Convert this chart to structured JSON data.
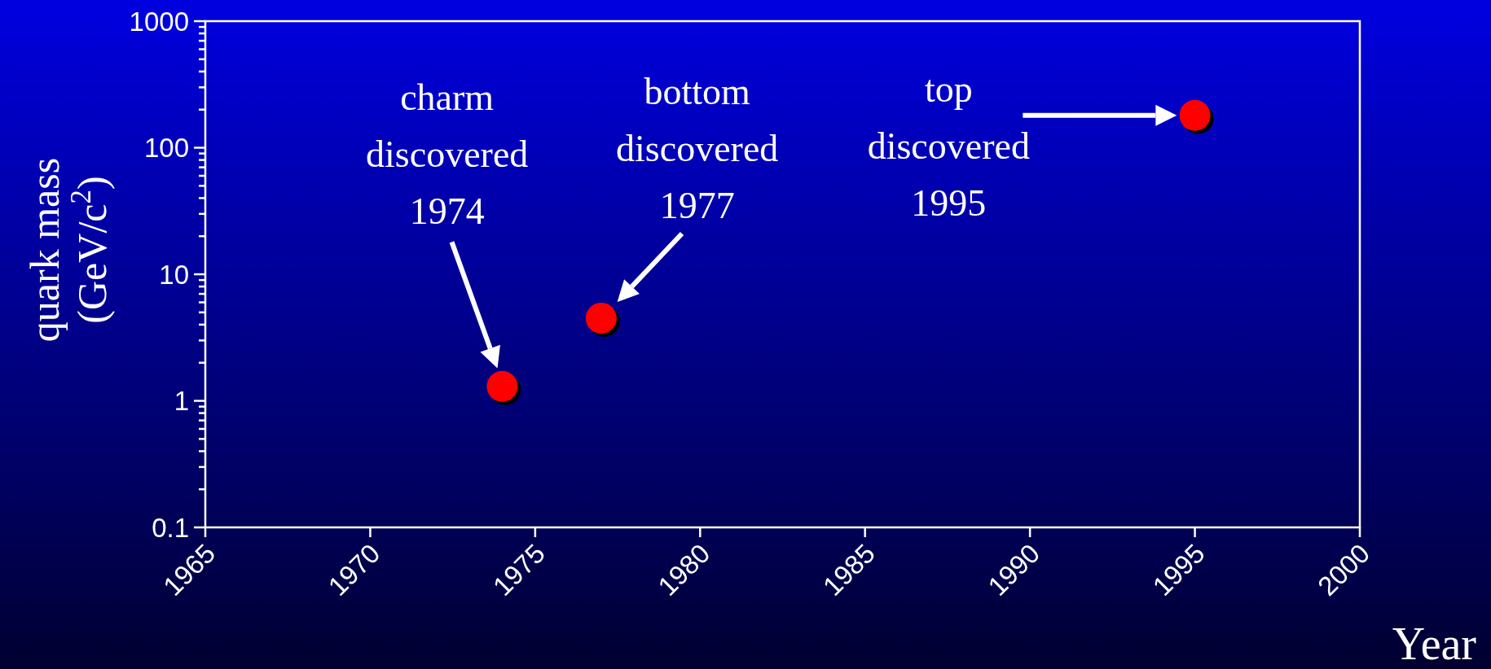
{
  "chart_data": {
    "type": "scatter",
    "xlabel": "Year",
    "ylabel": "quark mass\n(GeV/c$^{2}$)",
    "log": "y",
    "x": [
      1974,
      1977,
      1995
    ],
    "series": [
      {
        "color": "#ff0000",
        "values": [
          1.3,
          4.5,
          180
        ]
      }
    ],
    "marker": "circle",
    "grid": false,
    "xlim": [
      1965,
      2000
    ],
    "xticks": [
      1965,
      1970,
      1975,
      1980,
      1985,
      1990,
      1995,
      2000
    ],
    "ylim": [
      0.1,
      1000
    ],
    "yticks": [
      0.1,
      {
        "value": 0.2,
        "label": null
      },
      {
        "value": 0.3,
        "label": null
      },
      {
        "value": 0.4,
        "label": null
      },
      {
        "value": 0.5,
        "label": null
      },
      {
        "value": 0.6,
        "label": null
      },
      {
        "value": 0.7,
        "label": null
      },
      {
        "value": 0.8,
        "label": null
      },
      {
        "value": 0.9,
        "label": null
      },
      1,
      {
        "value": 2,
        "label": null
      },
      {
        "value": 3,
        "label": null
      },
      {
        "value": 4,
        "label": null
      },
      {
        "value": 5,
        "label": null
      },
      {
        "value": 6,
        "label": null
      },
      {
        "value": 7,
        "label": null
      },
      {
        "value": 8,
        "label": null
      },
      {
        "value": 9,
        "label": null
      },
      10,
      {
        "value": 20,
        "label": null
      },
      {
        "value": 30,
        "label": null
      },
      {
        "value": 40,
        "label": null
      },
      {
        "value": 50,
        "label": null
      },
      {
        "value": 60,
        "label": null
      },
      {
        "value": 70,
        "label": null
      },
      {
        "value": 80,
        "label": null
      },
      {
        "value": 90,
        "label": null
      },
      100,
      {
        "value": 200,
        "label": null
      },
      {
        "value": 300,
        "label": null
      },
      {
        "value": 400,
        "label": null
      },
      {
        "value": 500,
        "label": null
      },
      {
        "value": 600,
        "label": null
      },
      {
        "value": 700,
        "label": null
      },
      {
        "value": 800,
        "label": null
      },
      {
        "value": 900,
        "label": null
      },
      1000
    ],
    "annotations": [
      "charm\ndiscovered\n1974",
      {
        "text": "bottom\ndiscovered\n1977",
        "x": 1977,
        "y": 4.5
      },
      "top\ndiscovered\n1995"
    ]
  }
}
